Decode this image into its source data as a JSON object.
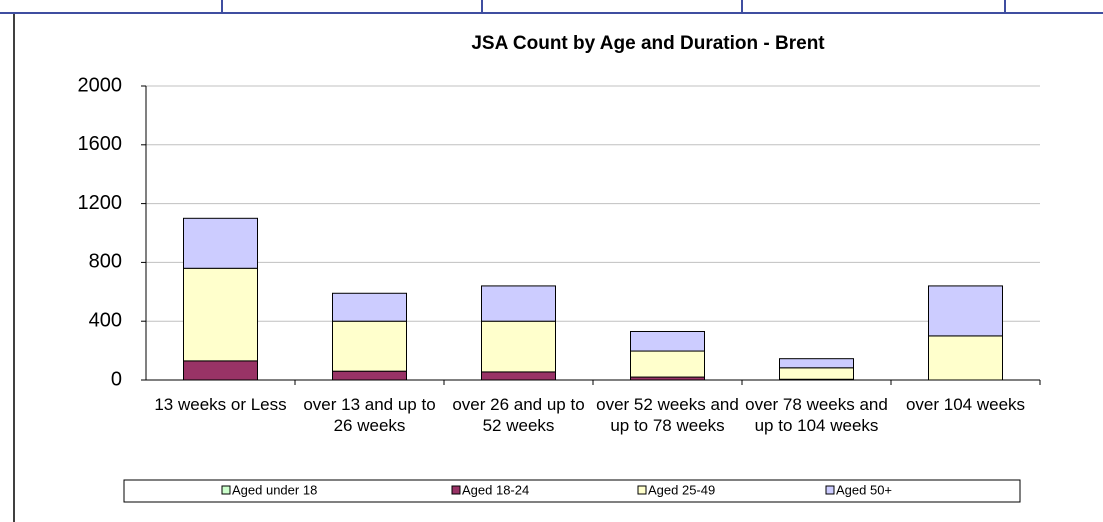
{
  "chart_data": {
    "type": "stacked_bar",
    "title": "JSA Count by Age and Duration - Brent",
    "categories": [
      "13 weeks or Less",
      "over 13 and up to 26 weeks",
      "over 26 and up to 52 weeks",
      "over 52 weeks and up to 78 weeks",
      "over 78 weeks and up to 104 weeks",
      "over 104 weeks"
    ],
    "series": [
      {
        "name": "Aged under 18",
        "color": "#ccffcc",
        "values": [
          0,
          0,
          0,
          0,
          0,
          0
        ]
      },
      {
        "name": "Aged 18-24",
        "color": "#993366",
        "values": [
          130,
          60,
          55,
          20,
          5,
          0
        ]
      },
      {
        "name": "Aged 25-49",
        "color": "#ffffcc",
        "values": [
          630,
          340,
          345,
          177,
          78,
          300
        ]
      },
      {
        "name": "Aged 50+",
        "color": "#ccccff",
        "values": [
          340,
          190,
          240,
          133,
          62,
          340
        ]
      }
    ],
    "ylim": [
      0,
      2000
    ],
    "yticks": [
      0,
      400,
      800,
      1200,
      1600,
      2000
    ],
    "grid": true,
    "legend": "bottom"
  }
}
